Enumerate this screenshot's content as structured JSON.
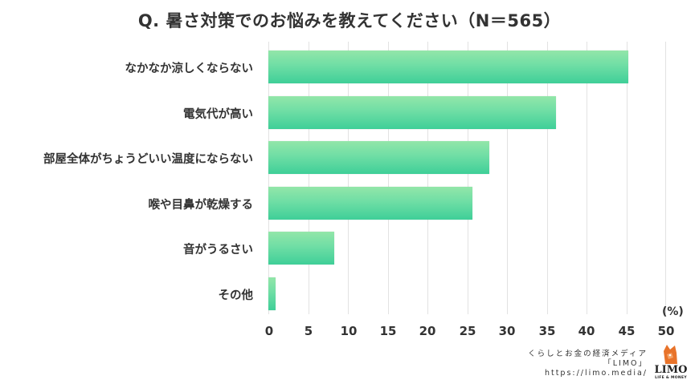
{
  "title": "Q. 暑さ対策でのお悩みを教えてください（N＝565）",
  "chart_data": {
    "type": "bar",
    "orientation": "horizontal",
    "title": "Q. 暑さ対策でのお悩みを教えてください（N＝565）",
    "categories": [
      "なかなか涼しくならない",
      "電気代が高い",
      "部屋全体がちょうどいい温度にならない",
      "喉や目鼻が乾燥する",
      "音がうるさい",
      "その他"
    ],
    "values": [
      45.3,
      36.2,
      27.8,
      25.7,
      8.3,
      0.9
    ],
    "xlabel": "(%)",
    "ylabel": "",
    "xlim": [
      0,
      50
    ],
    "x_ticks": [
      "0",
      "5",
      "10",
      "15",
      "20",
      "25",
      "30",
      "35",
      "40",
      "45",
      "50"
    ],
    "grid": true,
    "legend": "none",
    "bar_colors": {
      "top": "#93e6a9",
      "bottom": "#3fcf98"
    }
  },
  "axis": {
    "unit": "(%)",
    "ticks": [
      "0",
      "5",
      "10",
      "15",
      "20",
      "25",
      "30",
      "35",
      "40",
      "45",
      "50"
    ]
  },
  "credit": {
    "line1": "くらしとお金の経済メディア",
    "line2": "「LIMO」",
    "line3": "https://limo.media/"
  },
  "logo": {
    "name": "LIMO",
    "tagline": "LIFE & MONEY",
    "color": "#e8732a"
  }
}
